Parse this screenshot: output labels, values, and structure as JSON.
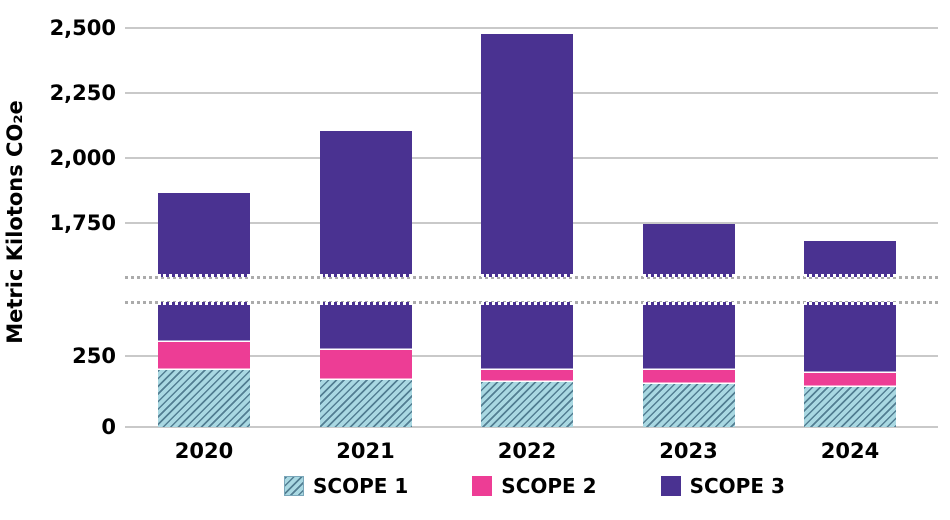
{
  "chart_data": {
    "type": "bar",
    "stacked": true,
    "title": "",
    "ylabel": "Metric Kilotons CO₂e",
    "xlabel": "",
    "categories": [
      "2020",
      "2021",
      "2022",
      "2023",
      "2024"
    ],
    "series": [
      {
        "name": "SCOPE 1",
        "color": "#a9d8e2",
        "pattern": "diagonal-hatch",
        "hatch_color": "#527e92",
        "values": [
          200,
          165,
          160,
          150,
          140
        ]
      },
      {
        "name": "SCOPE 2",
        "color": "#ed3d95",
        "pattern": "solid",
        "values": [
          100,
          105,
          40,
          50,
          50
        ]
      },
      {
        "name": "SCOPE 3",
        "color": "#4a3291",
        "pattern": "solid",
        "values": [
          1565,
          1835,
          2275,
          1545,
          1490
        ]
      }
    ],
    "totals": [
      1865,
      2105,
      2475,
      1745,
      1680
    ],
    "yticks": [
      {
        "value": 0,
        "label": "0"
      },
      {
        "value": 250,
        "label": "250"
      },
      {
        "value": 1750,
        "label": "1,750"
      },
      {
        "value": 2000,
        "label": "2,000"
      },
      {
        "value": 2250,
        "label": "2,250"
      },
      {
        "value": 2500,
        "label": "2,500"
      }
    ],
    "axis_break": {
      "lower_value": 440,
      "upper_value": 1542,
      "style": "dotted"
    },
    "grid": true,
    "legend_position": "bottom",
    "colors": {
      "gridline": "#c9c9c9",
      "break_dots": "#ababab",
      "text": "#000000",
      "background": "#ffffff",
      "segment_separator": "#ffffff"
    }
  }
}
